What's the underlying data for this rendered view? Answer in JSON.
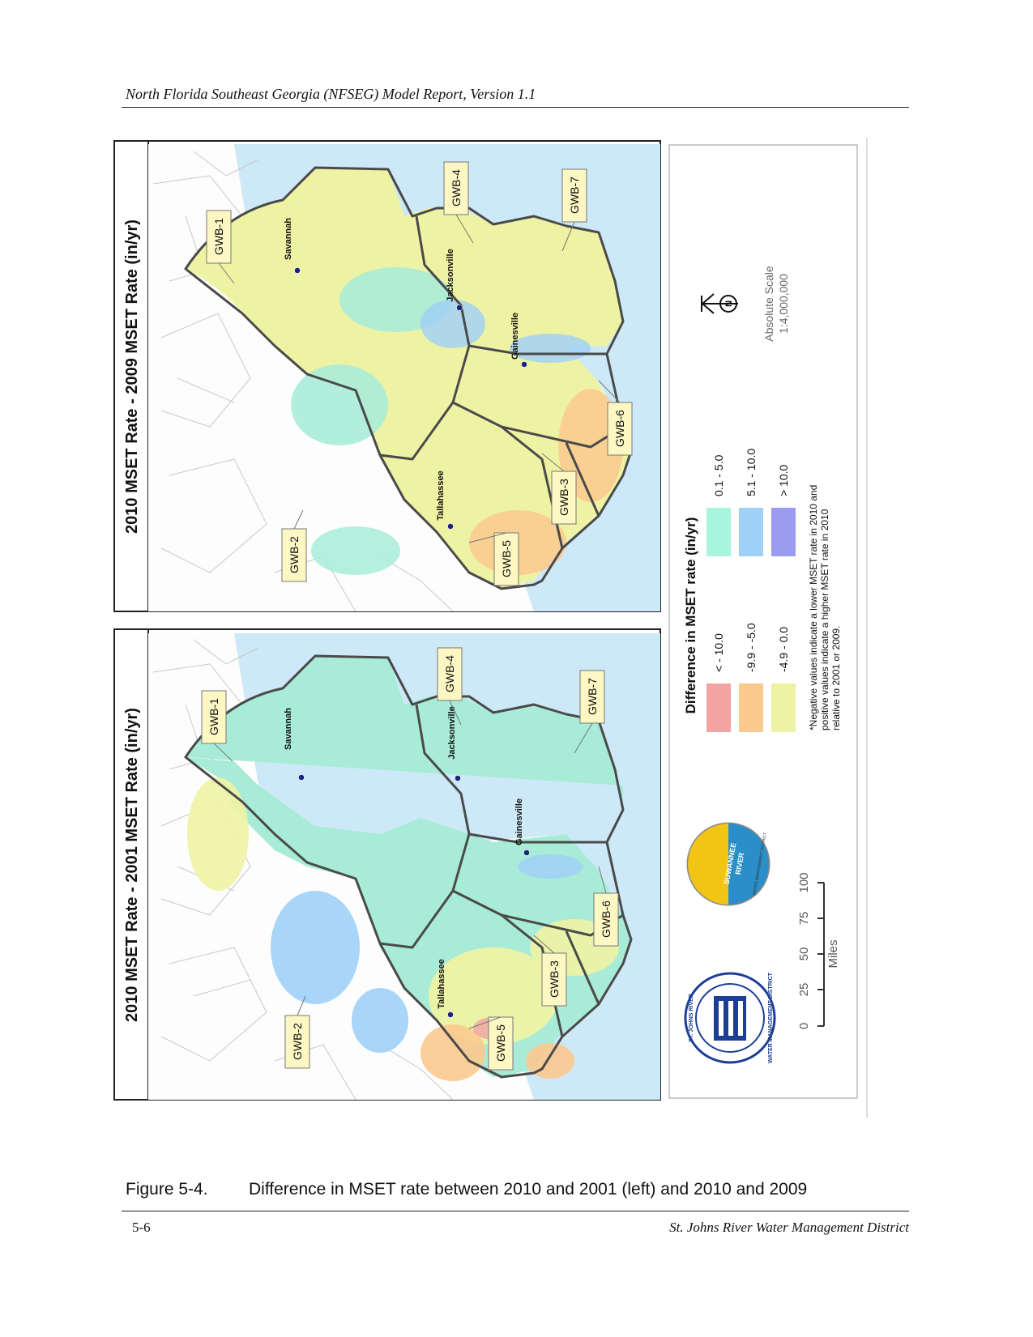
{
  "header": {
    "title": "North Florida Southeast Georgia (NFSEG) Model Report, Version 1.1"
  },
  "panels": {
    "left_title": "2010 MSET Rate - 2001 MSET Rate (in/yr)",
    "right_title": "2010 MSET Rate - 2009 MSET Rate (in/yr)",
    "cities": [
      "Savannah",
      "Jacksonville",
      "Gainesville",
      "Tallahassee"
    ],
    "gwb_labels": [
      "GWB-1",
      "GWB-2",
      "GWB-3",
      "GWB-4",
      "GWB-5",
      "GWB-6",
      "GWB-7"
    ]
  },
  "legend": {
    "title": "Difference in MSET rate (in/yr)",
    "classes": [
      {
        "label": "< - 10.0",
        "color": "#f4a3a3"
      },
      {
        "label": "-9.9 - -5.0",
        "color": "#fcc98f"
      },
      {
        "label": "-4.9 - 0.0",
        "color": "#eef3a4"
      },
      {
        "label": "0.1 - 5.0",
        "color": "#a8f4dc"
      },
      {
        "label": "5.1 - 10.0",
        "color": "#9fd0f7"
      },
      {
        "label": "> 10.0",
        "color": "#9b9cf0"
      }
    ],
    "note": [
      "*Negative values indicate a lower MSET rate in 2010 and",
      "positive values indicate a higher MSET rate in 2010",
      "relative to 2001 or 2009."
    ],
    "scale_title": "Absolute Scale",
    "scale_ratio": "1:4,000,000",
    "north_label": "N",
    "miles_ticks": [
      "0",
      "25",
      "50",
      "75",
      "100"
    ],
    "miles_label": "Miles",
    "logo_srwmd": [
      "SUWANNEE",
      "RIVER",
      "WATER MANAGEMENT DISTRICT"
    ],
    "logo_sjrwmd": [
      "ST. JOHNS RIVER",
      "WATER MANAGEMENT DISTRICT"
    ]
  },
  "caption": {
    "number": "Figure 5-4.",
    "text": "Difference in MSET rate between 2010 and 2001 (left) and 2010 and 2009"
  },
  "footer": {
    "page": "5-6",
    "org": "St. Johns River Water Management District"
  }
}
